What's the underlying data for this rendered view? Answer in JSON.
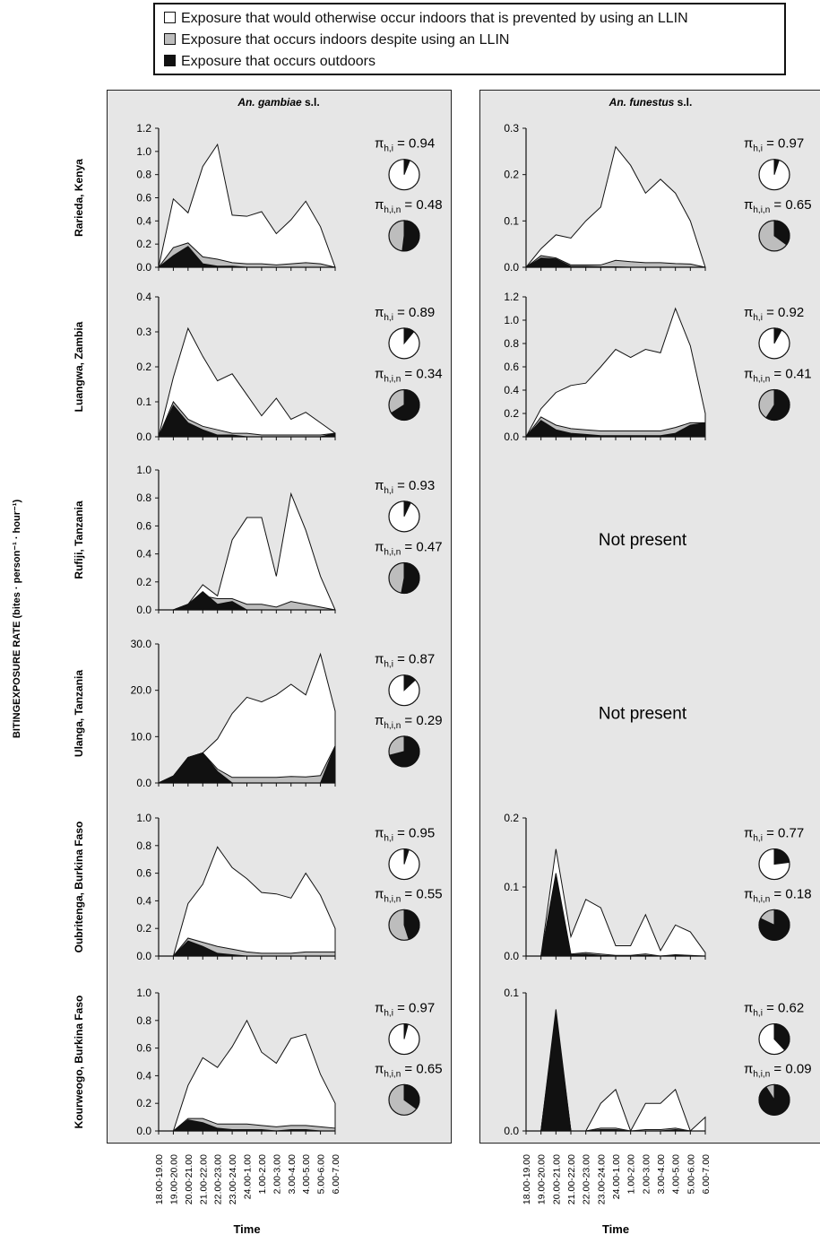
{
  "legend": {
    "items": [
      {
        "label": "Exposure that would otherwise occur indoors that is prevented by using an LLIN",
        "color": "#ffffff"
      },
      {
        "label": "Exposure that occurs indoors despite using an LLIN",
        "color": "#bdbdbd"
      },
      {
        "label": "Exposure that occurs  outdoors",
        "color": "#111111"
      }
    ]
  },
  "y_axis_title": "BITINGEXPOSURE RATE (bites · person⁻¹ · hour⁻¹)",
  "x_axis_title": "Time",
  "not_present_label": "Not present",
  "pi_labels": {
    "indoor": "π",
    "indoor_sub": "h,i",
    "bed": "π",
    "bed_sub": "h,i,n"
  },
  "chart_data": {
    "type": "area",
    "stacked": true,
    "x": [
      "18.00-19.00",
      "19.00-20.00",
      "20.00-21.00",
      "21.00-22.00",
      "22.00-23.00",
      "23.00-24.00",
      "24.00-1.00",
      "1.00-2.00",
      "2.00-3.00",
      "3.00-4.00",
      "4.00-5.00",
      "5.00-6.00",
      "6.00-7.00"
    ],
    "xlabel": "Time",
    "ylabel": "BITINGEXPOSURE RATE (bites · person⁻¹ · hour⁻¹)",
    "colors": {
      "prevented": "#ffffff",
      "indoor_net": "#bdbdbd",
      "outdoor": "#111111"
    },
    "columns": [
      "An. gambiae s.l.",
      "An. funestus s.l."
    ],
    "rows": [
      {
        "site": "Rarieda, Kenya",
        "panels": [
          {
            "yticks": [
              "0.0",
              "0.2",
              "0.4",
              "0.6",
              "0.8",
              "1.0",
              "1.2"
            ],
            "ymax": 1.2,
            "total": [
              0.0,
              0.59,
              0.47,
              0.87,
              1.06,
              0.45,
              0.44,
              0.48,
              0.29,
              0.41,
              0.57,
              0.35,
              0.0
            ],
            "indoor_net": [
              0.0,
              0.17,
              0.21,
              0.09,
              0.07,
              0.04,
              0.03,
              0.03,
              0.02,
              0.03,
              0.04,
              0.03,
              0.0
            ],
            "outdoor": [
              0.0,
              0.1,
              0.18,
              0.03,
              0.01,
              0.01,
              0.0,
              0.0,
              0.0,
              0.0,
              0.0,
              0.0,
              0.0
            ],
            "pi_hi": "0.94",
            "pi_hin": "0.48",
            "pie_hi_frac": 0.06,
            "pie_hin_frac": 0.52
          },
          {
            "yticks": [
              "0.0",
              "0.1",
              "0.2",
              "0.3"
            ],
            "ymax": 0.3,
            "total": [
              0.0,
              0.04,
              0.07,
              0.063,
              0.1,
              0.13,
              0.26,
              0.22,
              0.16,
              0.19,
              0.16,
              0.1,
              0.0
            ],
            "indoor_net": [
              0.0,
              0.025,
              0.02,
              0.005,
              0.005,
              0.005,
              0.015,
              0.012,
              0.01,
              0.01,
              0.008,
              0.007,
              0.0
            ],
            "outdoor": [
              0.0,
              0.02,
              0.018,
              0.002,
              0.002,
              0.001,
              0.001,
              0.0,
              0.0,
              0.0,
              0.0,
              0.0,
              0.0
            ],
            "pi_hi": "0.97",
            "pi_hin": "0.65",
            "pie_hi_frac": 0.05,
            "pie_hin_frac": 0.35
          }
        ]
      },
      {
        "site": "Luangwa, Zambia",
        "panels": [
          {
            "yticks": [
              "0.0",
              "0.1",
              "0.2",
              "0.3",
              "0.4"
            ],
            "ymax": 0.4,
            "total": [
              0.0,
              0.17,
              0.31,
              0.23,
              0.16,
              0.18,
              0.12,
              0.06,
              0.11,
              0.05,
              0.07,
              0.04,
              0.01
            ],
            "indoor_net": [
              0.0,
              0.1,
              0.05,
              0.03,
              0.02,
              0.01,
              0.01,
              0.005,
              0.005,
              0.005,
              0.005,
              0.005,
              0.01
            ],
            "outdoor": [
              0.0,
              0.09,
              0.04,
              0.02,
              0.005,
              0.005,
              0.0,
              0.0,
              0.0,
              0.0,
              0.0,
              0.0,
              0.01
            ],
            "pi_hi": "0.89",
            "pi_hin": "0.34",
            "pie_hi_frac": 0.11,
            "pie_hin_frac": 0.66
          },
          {
            "yticks": [
              "0.0",
              "0.2",
              "0.4",
              "0.6",
              "0.8",
              "1.0",
              "1.2"
            ],
            "ymax": 1.2,
            "total": [
              0.0,
              0.24,
              0.38,
              0.44,
              0.46,
              0.6,
              0.75,
              0.68,
              0.75,
              0.72,
              1.1,
              0.78,
              0.2
            ],
            "indoor_net": [
              0.0,
              0.17,
              0.1,
              0.07,
              0.06,
              0.05,
              0.05,
              0.05,
              0.05,
              0.05,
              0.08,
              0.12,
              0.12
            ],
            "outdoor": [
              0.0,
              0.14,
              0.06,
              0.03,
              0.02,
              0.01,
              0.01,
              0.01,
              0.01,
              0.01,
              0.03,
              0.1,
              0.12
            ],
            "pi_hi": "0.92",
            "pi_hin": "0.41",
            "pie_hi_frac": 0.08,
            "pie_hin_frac": 0.59
          }
        ]
      },
      {
        "site": "Rufiji, Tanzania",
        "panels": [
          {
            "yticks": [
              "0.0",
              "0.2",
              "0.4",
              "0.6",
              "0.8",
              "1.0"
            ],
            "ymax": 1.0,
            "total": [
              0.0,
              0.0,
              0.04,
              0.18,
              0.1,
              0.5,
              0.66,
              0.66,
              0.24,
              0.83,
              0.57,
              0.24,
              0.0
            ],
            "indoor_net": [
              0.0,
              0.0,
              0.04,
              0.1,
              0.08,
              0.08,
              0.04,
              0.04,
              0.02,
              0.06,
              0.04,
              0.02,
              0.0
            ],
            "outdoor": [
              0.0,
              0.0,
              0.04,
              0.13,
              0.04,
              0.06,
              0.0,
              0.0,
              0.0,
              0.0,
              0.0,
              0.0,
              0.0
            ],
            "pi_hi": "0.93",
            "pi_hin": "0.47",
            "pie_hi_frac": 0.07,
            "pie_hin_frac": 0.53
          },
          null
        ]
      },
      {
        "site": "Ulanga, Tanzania",
        "panels": [
          {
            "yticks": [
              "0.0",
              "10.0",
              "20.0",
              "30.0"
            ],
            "ymax": 30,
            "total": [
              0.0,
              1.5,
              5.5,
              6.5,
              9.5,
              15.0,
              18.5,
              17.5,
              19.0,
              21.3,
              19.0,
              27.8,
              15.5
            ],
            "indoor_net": [
              0.0,
              1.5,
              5.5,
              6.5,
              3.0,
              1.2,
              1.2,
              1.2,
              1.2,
              1.4,
              1.3,
              1.6,
              8.0
            ],
            "outdoor": [
              0.0,
              1.5,
              5.5,
              6.5,
              2.5,
              0.0,
              0.0,
              0.0,
              0.0,
              0.0,
              0.0,
              0.0,
              8.0
            ],
            "pi_hi": "0.87",
            "pi_hin": "0.29",
            "pie_hi_frac": 0.13,
            "pie_hin_frac": 0.71
          },
          null
        ]
      },
      {
        "site": "Oubritenga, Burkina Faso",
        "panels": [
          {
            "yticks": [
              "0.0",
              "0.2",
              "0.4",
              "0.6",
              "0.8",
              "1.0"
            ],
            "ymax": 1.0,
            "total": [
              0.0,
              0.0,
              0.38,
              0.52,
              0.79,
              0.64,
              0.56,
              0.46,
              0.45,
              0.42,
              0.6,
              0.44,
              0.2
            ],
            "indoor_net": [
              0.0,
              0.0,
              0.13,
              0.1,
              0.07,
              0.05,
              0.03,
              0.02,
              0.02,
              0.02,
              0.03,
              0.03,
              0.03
            ],
            "outdoor": [
              0.0,
              0.0,
              0.11,
              0.07,
              0.02,
              0.01,
              0.0,
              0.0,
              0.0,
              0.0,
              0.0,
              0.0,
              0.0
            ],
            "pi_hi": "0.95",
            "pi_hin": "0.55",
            "pie_hi_frac": 0.05,
            "pie_hin_frac": 0.45
          },
          {
            "yticks": [
              "0.0",
              "0.1",
              "0.2"
            ],
            "ymax": 0.2,
            "total": [
              0.0,
              0.0,
              0.155,
              0.028,
              0.082,
              0.07,
              0.015,
              0.015,
              0.06,
              0.008,
              0.045,
              0.035,
              0.005
            ],
            "indoor_net": [
              0.0,
              0.0,
              0.12,
              0.003,
              0.005,
              0.003,
              0.001,
              0.001,
              0.003,
              0.0,
              0.002,
              0.001,
              0.0
            ],
            "outdoor": [
              0.0,
              0.0,
              0.115,
              0.002,
              0.003,
              0.001,
              0.0,
              0.0,
              0.001,
              0.0,
              0.001,
              0.0,
              0.0
            ],
            "pi_hi": "0.77",
            "pi_hin": "0.18",
            "pie_hi_frac": 0.23,
            "pie_hin_frac": 0.82
          }
        ]
      },
      {
        "site": "Kourweogo, Burkina Faso",
        "panels": [
          {
            "yticks": [
              "0.0",
              "0.2",
              "0.4",
              "0.6",
              "0.8",
              "1.0"
            ],
            "ymax": 1.0,
            "total": [
              0.0,
              0.0,
              0.33,
              0.53,
              0.46,
              0.61,
              0.8,
              0.57,
              0.49,
              0.67,
              0.7,
              0.41,
              0.2
            ],
            "indoor_net": [
              0.0,
              0.0,
              0.09,
              0.09,
              0.05,
              0.05,
              0.05,
              0.04,
              0.03,
              0.04,
              0.04,
              0.03,
              0.02
            ],
            "outdoor": [
              0.0,
              0.0,
              0.08,
              0.06,
              0.02,
              0.01,
              0.01,
              0.01,
              0.0,
              0.01,
              0.01,
              0.0,
              0.0
            ],
            "pi_hi": "0.97",
            "pi_hin": "0.65",
            "pie_hi_frac": 0.04,
            "pie_hin_frac": 0.35
          },
          {
            "yticks": [
              "0.0",
              "0.1"
            ],
            "ymax": 0.1,
            "total": [
              0.0,
              0.0,
              0.088,
              0.0,
              0.0,
              0.02,
              0.03,
              0.0,
              0.02,
              0.02,
              0.03,
              0.0,
              0.01
            ],
            "indoor_net": [
              0.0,
              0.0,
              0.085,
              0.0,
              0.0,
              0.002,
              0.002,
              0.0,
              0.001,
              0.001,
              0.002,
              0.0,
              0.0
            ],
            "outdoor": [
              0.0,
              0.0,
              0.083,
              0.0,
              0.0,
              0.001,
              0.001,
              0.0,
              0.0,
              0.0,
              0.001,
              0.0,
              0.0
            ],
            "pi_hi": "0.62",
            "pi_hin": "0.09",
            "pie_hi_frac": 0.38,
            "pie_hin_frac": 0.91
          }
        ]
      }
    ]
  }
}
